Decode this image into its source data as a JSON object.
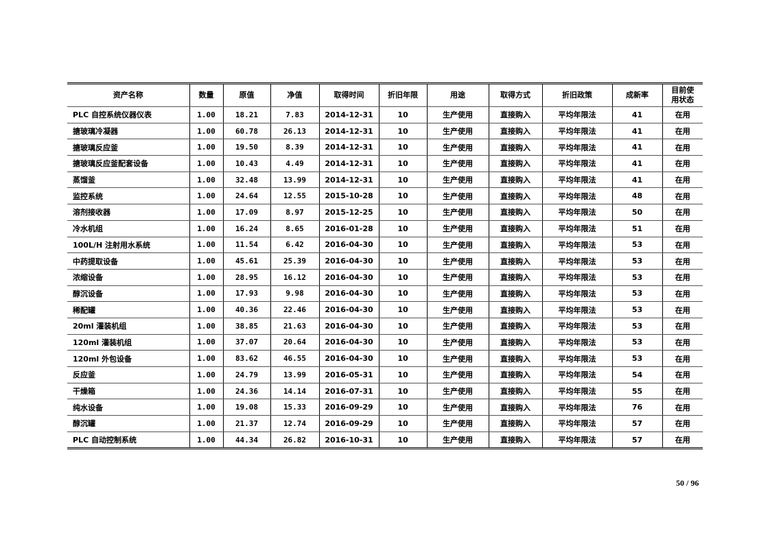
{
  "table": {
    "headers": [
      "资产名称",
      "数量",
      "原值",
      "净值",
      "取得时间",
      "折旧年限",
      "用途",
      "取得方式",
      "折旧政策",
      "成新率",
      "目前使用状态"
    ],
    "rows": [
      [
        "PLC 自控系统仪器仪表",
        "1.00",
        "18.21",
        "7.83",
        "2014-12-31",
        "10",
        "生产使用",
        "直接购入",
        "平均年限法",
        "41",
        "在用"
      ],
      [
        "搪玻璃冷凝器",
        "1.00",
        "60.78",
        "26.13",
        "2014-12-31",
        "10",
        "生产使用",
        "直接购入",
        "平均年限法",
        "41",
        "在用"
      ],
      [
        "搪玻璃反应釜",
        "1.00",
        "19.50",
        "8.39",
        "2014-12-31",
        "10",
        "生产使用",
        "直接购入",
        "平均年限法",
        "41",
        "在用"
      ],
      [
        "搪玻璃反应釜配套设备",
        "1.00",
        "10.43",
        "4.49",
        "2014-12-31",
        "10",
        "生产使用",
        "直接购入",
        "平均年限法",
        "41",
        "在用"
      ],
      [
        "蒸馏釜",
        "1.00",
        "32.48",
        "13.99",
        "2014-12-31",
        "10",
        "生产使用",
        "直接购入",
        "平均年限法",
        "41",
        "在用"
      ],
      [
        "监控系统",
        "1.00",
        "24.64",
        "12.55",
        "2015-10-28",
        "10",
        "生产使用",
        "直接购入",
        "平均年限法",
        "48",
        "在用"
      ],
      [
        "溶剂接收器",
        "1.00",
        "17.09",
        "8.97",
        "2015-12-25",
        "10",
        "生产使用",
        "直接购入",
        "平均年限法",
        "50",
        "在用"
      ],
      [
        "冷水机组",
        "1.00",
        "16.24",
        "8.65",
        "2016-01-28",
        "10",
        "生产使用",
        "直接购入",
        "平均年限法",
        "51",
        "在用"
      ],
      [
        "100L/H 注射用水系统",
        "1.00",
        "11.54",
        "6.42",
        "2016-04-30",
        "10",
        "生产使用",
        "直接购入",
        "平均年限法",
        "53",
        "在用"
      ],
      [
        "中药提取设备",
        "1.00",
        "45.61",
        "25.39",
        "2016-04-30",
        "10",
        "生产使用",
        "直接购入",
        "平均年限法",
        "53",
        "在用"
      ],
      [
        "浓缩设备",
        "1.00",
        "28.95",
        "16.12",
        "2016-04-30",
        "10",
        "生产使用",
        "直接购入",
        "平均年限法",
        "53",
        "在用"
      ],
      [
        "醇沉设备",
        "1.00",
        "17.93",
        "9.98",
        "2016-04-30",
        "10",
        "生产使用",
        "直接购入",
        "平均年限法",
        "53",
        "在用"
      ],
      [
        "稀配罐",
        "1.00",
        "40.36",
        "22.46",
        "2016-04-30",
        "10",
        "生产使用",
        "直接购入",
        "平均年限法",
        "53",
        "在用"
      ],
      [
        "20ml 灌装机组",
        "1.00",
        "38.85",
        "21.63",
        "2016-04-30",
        "10",
        "生产使用",
        "直接购入",
        "平均年限法",
        "53",
        "在用"
      ],
      [
        "120ml 灌装机组",
        "1.00",
        "37.07",
        "20.64",
        "2016-04-30",
        "10",
        "生产使用",
        "直接购入",
        "平均年限法",
        "53",
        "在用"
      ],
      [
        "120ml 外包设备",
        "1.00",
        "83.62",
        "46.55",
        "2016-04-30",
        "10",
        "生产使用",
        "直接购入",
        "平均年限法",
        "53",
        "在用"
      ],
      [
        "反应釜",
        "1.00",
        "24.79",
        "13.99",
        "2016-05-31",
        "10",
        "生产使用",
        "直接购入",
        "平均年限法",
        "54",
        "在用"
      ],
      [
        "干燥箱",
        "1.00",
        "24.36",
        "14.14",
        "2016-07-31",
        "10",
        "生产使用",
        "直接购入",
        "平均年限法",
        "55",
        "在用"
      ],
      [
        "纯水设备",
        "1.00",
        "19.08",
        "15.33",
        "2016-09-29",
        "10",
        "生产使用",
        "直接购入",
        "平均年限法",
        "76",
        "在用"
      ],
      [
        "醇沉罐",
        "1.00",
        "21.37",
        "12.74",
        "2016-09-29",
        "10",
        "生产使用",
        "直接购入",
        "平均年限法",
        "57",
        "在用"
      ],
      [
        "PLC 自动控制系统",
        "1.00",
        "44.34",
        "26.82",
        "2016-10-31",
        "10",
        "生产使用",
        "直接购入",
        "平均年限法",
        "57",
        "在用"
      ]
    ]
  },
  "page_number": "50 / 96"
}
